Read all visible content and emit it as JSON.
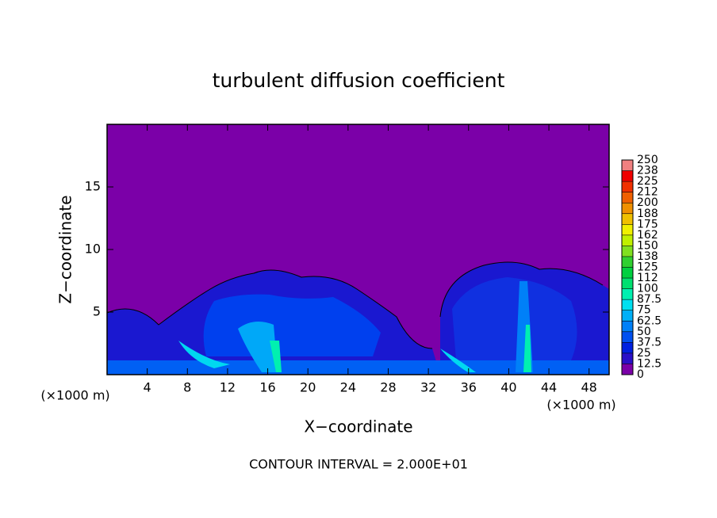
{
  "chart_data": {
    "type": "contour",
    "title": "turbulent diffusion coefficient",
    "xlabel": "X−coordinate",
    "ylabel": "Z−coordinate",
    "x_unit_label": "(×1000 m)",
    "footnote": "CONTOUR INTERVAL = 2.000E+01",
    "xlim": [
      0,
      50
    ],
    "xticks": [
      4,
      8,
      12,
      16,
      20,
      24,
      28,
      32,
      36,
      40,
      44,
      48
    ],
    "ylim": [
      0,
      20
    ],
    "yticks": [
      5,
      10,
      15
    ],
    "colorbar": {
      "levels": [
        0,
        12.5,
        25,
        37.5,
        50,
        62.5,
        75,
        87.5,
        100,
        112,
        125,
        138,
        150,
        162,
        175,
        188,
        200,
        212,
        225,
        238,
        250
      ],
      "colors": [
        "#7b00a8",
        "#2a10c8",
        "#0020e0",
        "#0050f0",
        "#0080f8",
        "#00b0f8",
        "#00e0f0",
        "#00f0b0",
        "#00e070",
        "#00d040",
        "#30d030",
        "#80e020",
        "#c0f000",
        "#f0f000",
        "#f0c000",
        "#f09000",
        "#f06000",
        "#f03000",
        "#f00000",
        "#f08080"
      ]
    }
  }
}
